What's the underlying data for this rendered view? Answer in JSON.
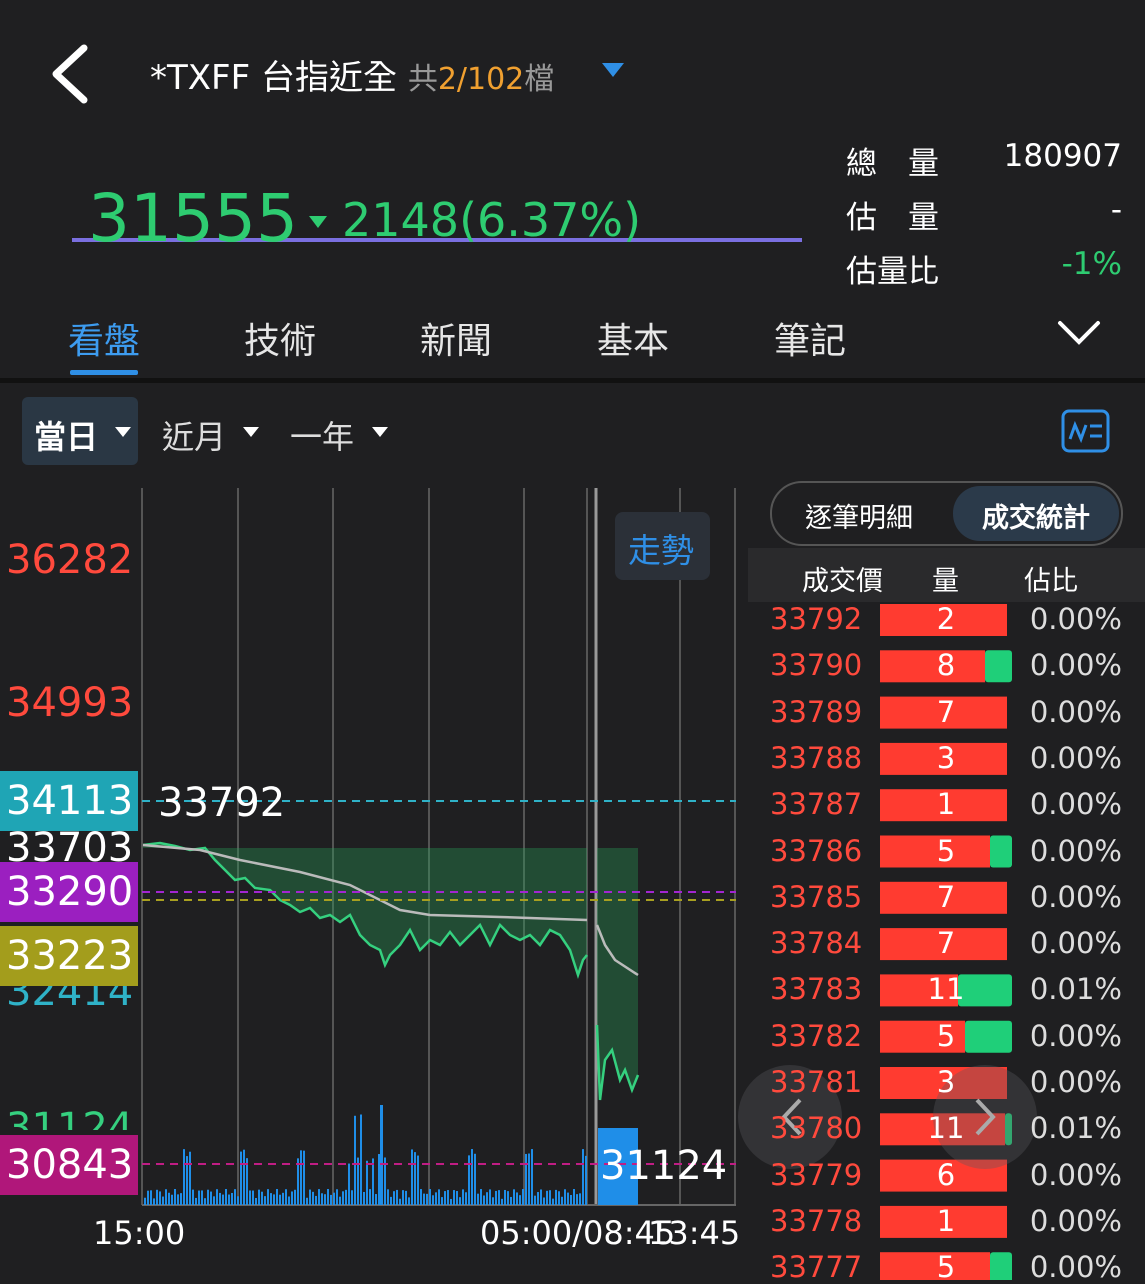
{
  "header": {
    "symbol": "*TXFF",
    "name": "台指近全",
    "count_prefix": "共",
    "count": "2/102",
    "count_suffix": "檔"
  },
  "quote": {
    "price": "31555",
    "change": "2148(6.37%)",
    "stats": [
      {
        "label": "總　量",
        "value": "180907"
      },
      {
        "label": "估　量",
        "value": "-"
      },
      {
        "label": "估量比",
        "value": "-1%"
      }
    ]
  },
  "tabs": [
    "看盤",
    "技術",
    "新聞",
    "基本",
    "筆記"
  ],
  "periods": [
    "當日",
    "近月",
    "一年"
  ],
  "chart": {
    "button": "走勢",
    "y_labels": [
      "36282",
      "34993",
      "34113",
      "33703",
      "33290",
      "33223",
      "32414",
      "31124",
      "30843"
    ],
    "line_labels": [
      "33792",
      "31124"
    ],
    "x_labels": [
      "15:00",
      "05:00/08:45",
      "13:45"
    ]
  },
  "trades": {
    "tabs": [
      "逐筆明細",
      "成交統計"
    ],
    "columns": [
      "成交價",
      "量",
      "佔比"
    ],
    "rows": [
      [
        "33792",
        "2",
        "0.00%"
      ],
      [
        "33790",
        "8",
        "0.00%"
      ],
      [
        "33789",
        "7",
        "0.00%"
      ],
      [
        "33788",
        "3",
        "0.00%"
      ],
      [
        "33787",
        "1",
        "0.00%"
      ],
      [
        "33786",
        "5",
        "0.00%"
      ],
      [
        "33785",
        "7",
        "0.00%"
      ],
      [
        "33784",
        "7",
        "0.00%"
      ],
      [
        "33783",
        "11",
        "0.01%"
      ],
      [
        "33782",
        "5",
        "0.00%"
      ],
      [
        "33781",
        "3",
        "0.00%"
      ],
      [
        "33780",
        "11",
        "0.01%"
      ],
      [
        "33779",
        "6",
        "0.00%"
      ],
      [
        "33778",
        "1",
        "0.00%"
      ],
      [
        "33777",
        "5",
        "0.00%"
      ]
    ]
  }
}
